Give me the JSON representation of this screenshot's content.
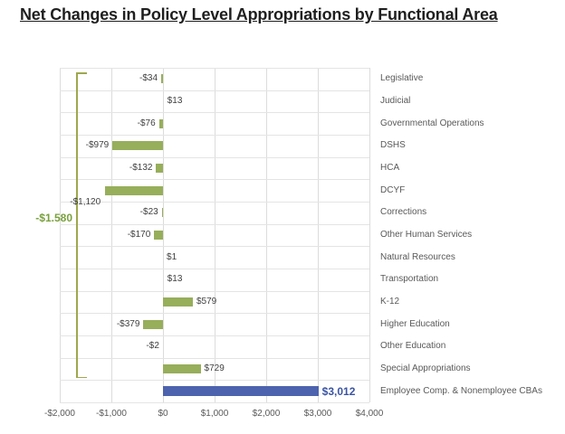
{
  "chart_data": {
    "type": "bar",
    "orientation": "horizontal",
    "title": "Net Changes in Policy Level Appropriations by Functional Area",
    "categories": [
      "Legislative",
      "Judicial",
      "Governmental Operations",
      "DSHS",
      "HCA",
      "DCYF",
      "Corrections",
      "Other Human Services",
      "Natural Resources",
      "Transportation",
      "K-12",
      "Higher Education",
      "Other Education",
      "Special Appropriations",
      "Employee Comp. & Nonemployee CBAs"
    ],
    "values": [
      -34,
      13,
      -76,
      -979,
      -132,
      -1120,
      -23,
      -170,
      1,
      13,
      579,
      -379,
      -2,
      729,
      3012
    ],
    "value_labels": [
      "-$34",
      "$13",
      "-$76",
      "-$979",
      "-$132",
      "-$1,120",
      "-$23",
      "-$170",
      "$1",
      "$13",
      "$579",
      "-$379",
      "-$2",
      "$729",
      "$3,012"
    ],
    "label_below_index": 5,
    "x_ticks": [
      "-$2,000",
      "-$1,000",
      "$0",
      "$1,000",
      "$2,000",
      "$3,000",
      "$4,000"
    ],
    "x_tick_values": [
      -2000,
      -1000,
      0,
      1000,
      2000,
      3000,
      4000
    ],
    "xlim": [
      -2000,
      4000
    ],
    "grid": true,
    "legend": "none",
    "bar_color_default": "#97ae5b",
    "bar_color_highlight": "#4d63ae",
    "highlight_index": 14,
    "bracket": {
      "label": "-$1.580",
      "color": "#9da84e",
      "label_color": "#79a03c",
      "span_categories": [
        "Legislative",
        "Special Appropriations"
      ],
      "span_rows": [
        0,
        13
      ]
    }
  },
  "colors": {
    "title_text": "#1f1f1f",
    "value_text": "#3f3f3f",
    "category_text": "#595959",
    "axis_text": "#595959",
    "gridline": "#dcdcdc"
  }
}
